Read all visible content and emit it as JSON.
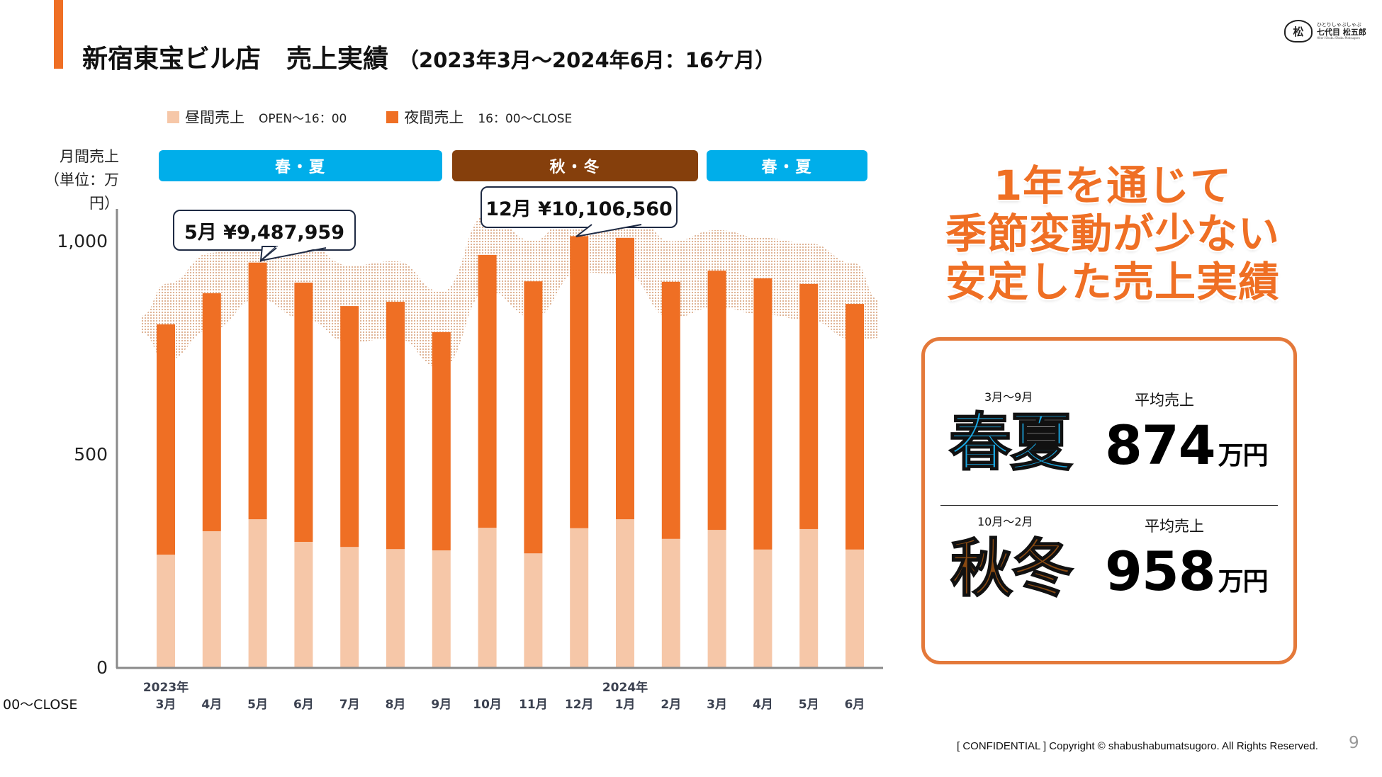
{
  "header": {
    "title": "新宿東宝ビル店　売上実績",
    "subtitle": "（2023年3月〜2024年6月：16ケ月）"
  },
  "logo": {
    "mark": "松",
    "tagline": "ひとりしゃぶしゃぶ",
    "name": "七代目 松五郎",
    "romaji": "Hitori Shabu Shabu Matsugoro"
  },
  "legend": [
    {
      "label": "昼間売上",
      "note": "OPEN〜16：00",
      "color": "#f6c7a8"
    },
    {
      "label": "夜間売上",
      "note": "16：00〜CLOSE",
      "color": "#ef6f24"
    }
  ],
  "yaxis_title": [
    "月間売上",
    "（単位：万円）"
  ],
  "seasons_bands": [
    {
      "label": "春・夏",
      "color": "#00aeea"
    },
    {
      "label": "秋・冬",
      "color": "#853f0c"
    },
    {
      "label": "春・夏",
      "color": "#00aeea"
    }
  ],
  "callouts": [
    {
      "text": "5月  ¥9,487,959"
    },
    {
      "text": "12月  ¥10,106,560"
    }
  ],
  "cut_label": "00〜CLOSE",
  "chart_data": {
    "type": "bar",
    "stacked": true,
    "title": "新宿東宝ビル店　売上実績（2023年3月〜2024年6月：16ケ月）",
    "ylabel": "月間売上（単位：万円）",
    "xlabel": "",
    "ylim": [
      0,
      1100
    ],
    "yticks": [
      0,
      500,
      1000
    ],
    "ytick_labels": [
      "0",
      "500",
      "1,000"
    ],
    "grid": false,
    "legend_position": "top",
    "categories": [
      "3月",
      "4月",
      "5月",
      "6月",
      "7月",
      "8月",
      "9月",
      "10月",
      "11月",
      "12月",
      "1月",
      "2月",
      "3月",
      "4月",
      "5月",
      "6月"
    ],
    "year_labels": [
      {
        "index": 0,
        "label": "2023年"
      },
      {
        "index": 10,
        "label": "2024年"
      }
    ],
    "series": [
      {
        "name": "昼間売上",
        "color": "#f6c7a8",
        "values": [
          264,
          319,
          347,
          294,
          282,
          277,
          274,
          327,
          267,
          326,
          347,
          301,
          322,
          276,
          324,
          276
        ]
      },
      {
        "name": "夜間売上",
        "color": "#ef6f24",
        "values": [
          540,
          558,
          602,
          608,
          565,
          580,
          512,
          640,
          638,
          685,
          660,
          603,
          608,
          636,
          575,
          576
        ]
      }
    ],
    "totals": [
      804,
      877,
      949,
      902,
      847,
      857,
      786,
      967,
      905,
      1011,
      1007,
      904,
      930,
      912,
      899,
      852
    ],
    "annotations": [
      {
        "index": 2,
        "text": "5月  ¥9,487,959"
      },
      {
        "index": 9,
        "text": "12月  ¥10,106,560"
      }
    ],
    "season_spans": [
      {
        "label": "春・夏",
        "from": 0,
        "to": 6
      },
      {
        "label": "秋・冬",
        "from": 7,
        "to": 11
      },
      {
        "label": "春・夏",
        "from": 12,
        "to": 15
      }
    ]
  },
  "headline": [
    "1年を通じて",
    "季節変動が少ない",
    "安定した売上実績"
  ],
  "summary": [
    {
      "range": "3月〜9月",
      "season": "春夏",
      "season_color": "#1aa6e0",
      "avg_label": "平均売上",
      "avg_value": "874",
      "unit": "万円"
    },
    {
      "range": "10月〜2月",
      "season": "秋冬",
      "season_color": "#8a4a12",
      "avg_label": "平均売上",
      "avg_value": "958",
      "unit": "万円"
    }
  ],
  "footer": {
    "copyright": "[ CONFIDENTIAL ] Copyright © shabushabumatsugoro. All Rights Reserved.",
    "page": "9"
  }
}
